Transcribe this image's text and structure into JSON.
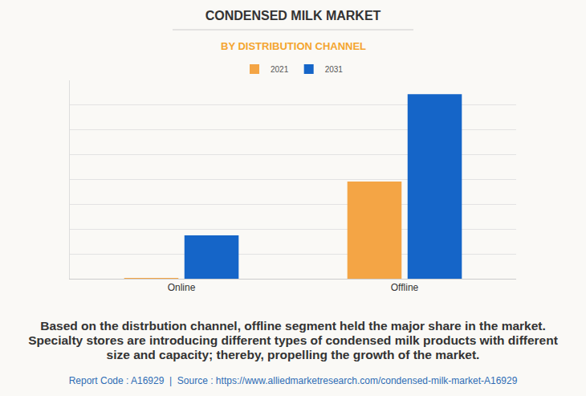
{
  "chart_data": {
    "type": "bar",
    "title": "CONDENSED MILK MARKET",
    "subtitle": "BY DISTRIBUTION CHANNEL",
    "categories": [
      "Online",
      "Offline"
    ],
    "series": [
      {
        "name": "2021",
        "color": "#f4a545",
        "values": [
          0.03,
          3.92
        ]
      },
      {
        "name": "2031",
        "color": "#1565c8",
        "values": [
          1.75,
          7.44
        ]
      }
    ],
    "ylim": [
      0,
      8
    ],
    "yticks": [
      0,
      1,
      2,
      3,
      4,
      5,
      6,
      7,
      8
    ],
    "grid": true,
    "tick_labels": "x",
    "legend": "top",
    "annotations": [
      "Based on the distrbution channel, offline segment held the major share in the market. Specialty stores are introducing different types of condensed milk products with different size and capacity; thereby, propelling the growth of the market.",
      "Report Code : A16929  |  Source : https://www.alliedmarketresearch.com/condensed-milk-market-A16929"
    ]
  }
}
